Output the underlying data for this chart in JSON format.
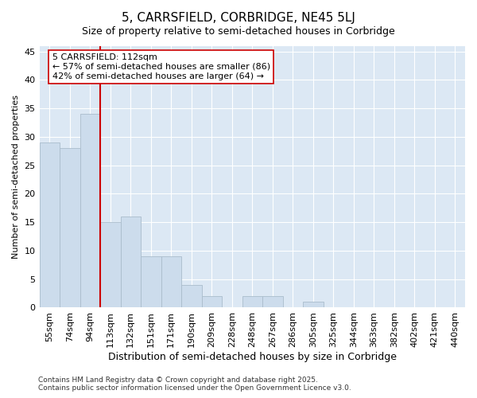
{
  "title": "5, CARRSFIELD, CORBRIDGE, NE45 5LJ",
  "subtitle": "Size of property relative to semi-detached houses in Corbridge",
  "xlabel": "Distribution of semi-detached houses by size in Corbridge",
  "ylabel": "Number of semi-detached properties",
  "categories": [
    "55sqm",
    "74sqm",
    "94sqm",
    "113sqm",
    "132sqm",
    "151sqm",
    "171sqm",
    "190sqm",
    "209sqm",
    "228sqm",
    "248sqm",
    "267sqm",
    "286sqm",
    "305sqm",
    "325sqm",
    "344sqm",
    "363sqm",
    "382sqm",
    "402sqm",
    "421sqm",
    "440sqm"
  ],
  "values": [
    29,
    28,
    34,
    15,
    16,
    9,
    9,
    4,
    2,
    0,
    2,
    2,
    0,
    1,
    0,
    0,
    0,
    0,
    0,
    0,
    0
  ],
  "bar_color": "#ccdcec",
  "bar_edgecolor": "#aabccc",
  "vline_color": "#cc0000",
  "vline_index": 3,
  "annotation_line1": "5 CARRSFIELD: 112sqm",
  "annotation_line2": "← 57% of semi-detached houses are smaller (86)",
  "annotation_line3": "42% of semi-detached houses are larger (64) →",
  "annotation_box_edgecolor": "#cc0000",
  "annotation_box_facecolor": "#ffffff",
  "ylim": [
    0,
    46
  ],
  "yticks": [
    0,
    5,
    10,
    15,
    20,
    25,
    30,
    35,
    40,
    45
  ],
  "fig_background": "#ffffff",
  "plot_background": "#dce8f4",
  "footer_line1": "Contains HM Land Registry data © Crown copyright and database right 2025.",
  "footer_line2": "Contains public sector information licensed under the Open Government Licence v3.0.",
  "title_fontsize": 11,
  "subtitle_fontsize": 9,
  "ylabel_fontsize": 8,
  "xlabel_fontsize": 9,
  "tick_fontsize": 8,
  "annot_fontsize": 8,
  "footer_fontsize": 6.5
}
